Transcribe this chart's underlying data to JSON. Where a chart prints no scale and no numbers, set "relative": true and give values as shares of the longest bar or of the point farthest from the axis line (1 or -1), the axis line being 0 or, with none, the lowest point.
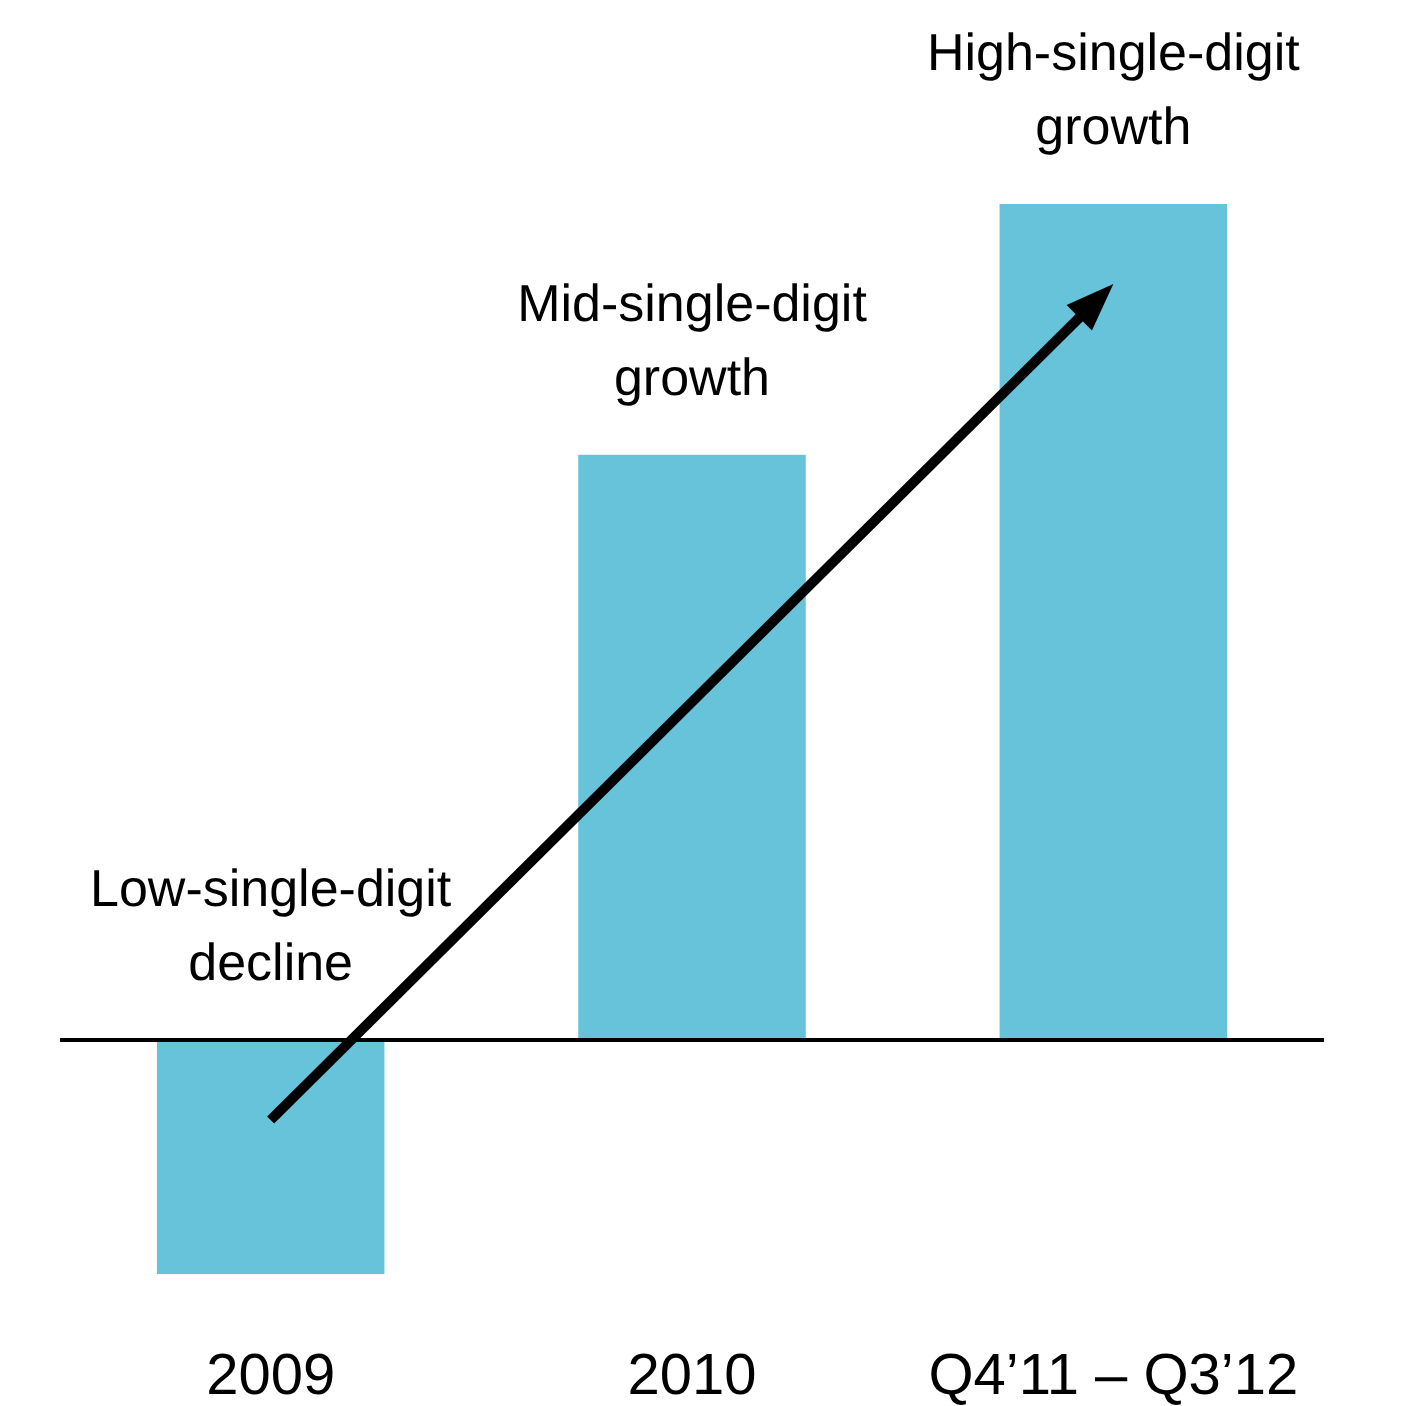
{
  "chart_data": {
    "type": "bar",
    "relative": true,
    "categories": [
      "2009",
      "2010",
      "Q4’11 – Q3’12"
    ],
    "values": [
      -0.28,
      0.7,
      1
    ],
    "color": "#67c3da",
    "annotations": [
      {
        "text": "Low-single-digit decline",
        "x": "2009",
        "y": 0
      },
      {
        "text": "Mid-single-digit growth",
        "x": "2010",
        "y": 0.7
      },
      {
        "text": "High-single-digit growth",
        "x": "Q4’11 – Q3’12",
        "y": 1
      }
    ]
  }
}
